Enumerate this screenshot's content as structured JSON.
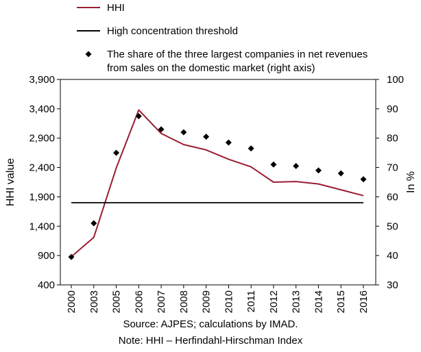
{
  "chart_data": {
    "type": "line",
    "categories": [
      "2000",
      "2003",
      "2005",
      "2006",
      "2007",
      "2008",
      "2009",
      "2010",
      "2011",
      "2012",
      "2013",
      "2014",
      "2015",
      "2016"
    ],
    "series": [
      {
        "name": "HHI",
        "kind": "line",
        "axis": "left",
        "color": "#9b1c31",
        "values": [
          880,
          1210,
          2390,
          3380,
          2980,
          2790,
          2700,
          2540,
          2410,
          2150,
          2160,
          2120,
          2020,
          1920
        ]
      },
      {
        "name": "High concentration threshold",
        "kind": "line",
        "axis": "left",
        "color": "#000000",
        "values": [
          1800,
          1800,
          1800,
          1800,
          1800,
          1800,
          1800,
          1800,
          1800,
          1800,
          1800,
          1800,
          1800,
          1800
        ]
      },
      {
        "name": "The share of the three largest companies in net revenues from sales on the domestic market (right axis)",
        "legend_lines": [
          "The share of the three largest companies in net revenues",
          "from sales on the domestic market (right axis)"
        ],
        "kind": "marker",
        "axis": "right",
        "color": "#000000",
        "values": [
          39.5,
          51,
          75,
          87.5,
          83,
          82,
          80.5,
          78.5,
          76.5,
          71,
          70.5,
          69,
          68,
          66
        ]
      }
    ],
    "y_left": {
      "label": "HHI value",
      "ticks": [
        400,
        900,
        1400,
        1900,
        2400,
        2900,
        3400,
        3900
      ],
      "tick_labels": [
        "400",
        "900",
        "1,400",
        "1,900",
        "2,400",
        "2,900",
        "3,400",
        "3,900"
      ],
      "lim": [
        400,
        3900
      ]
    },
    "y_right": {
      "label": "In %",
      "ticks": [
        30,
        40,
        50,
        60,
        70,
        80,
        90,
        100
      ],
      "lim": [
        30,
        100
      ]
    },
    "grid": false,
    "legend_position": "top"
  },
  "footer": {
    "source": "Source: AJPES; calculations by IMAD.",
    "note": "Note: HHI – Herfindahl-Hirschman Index"
  }
}
